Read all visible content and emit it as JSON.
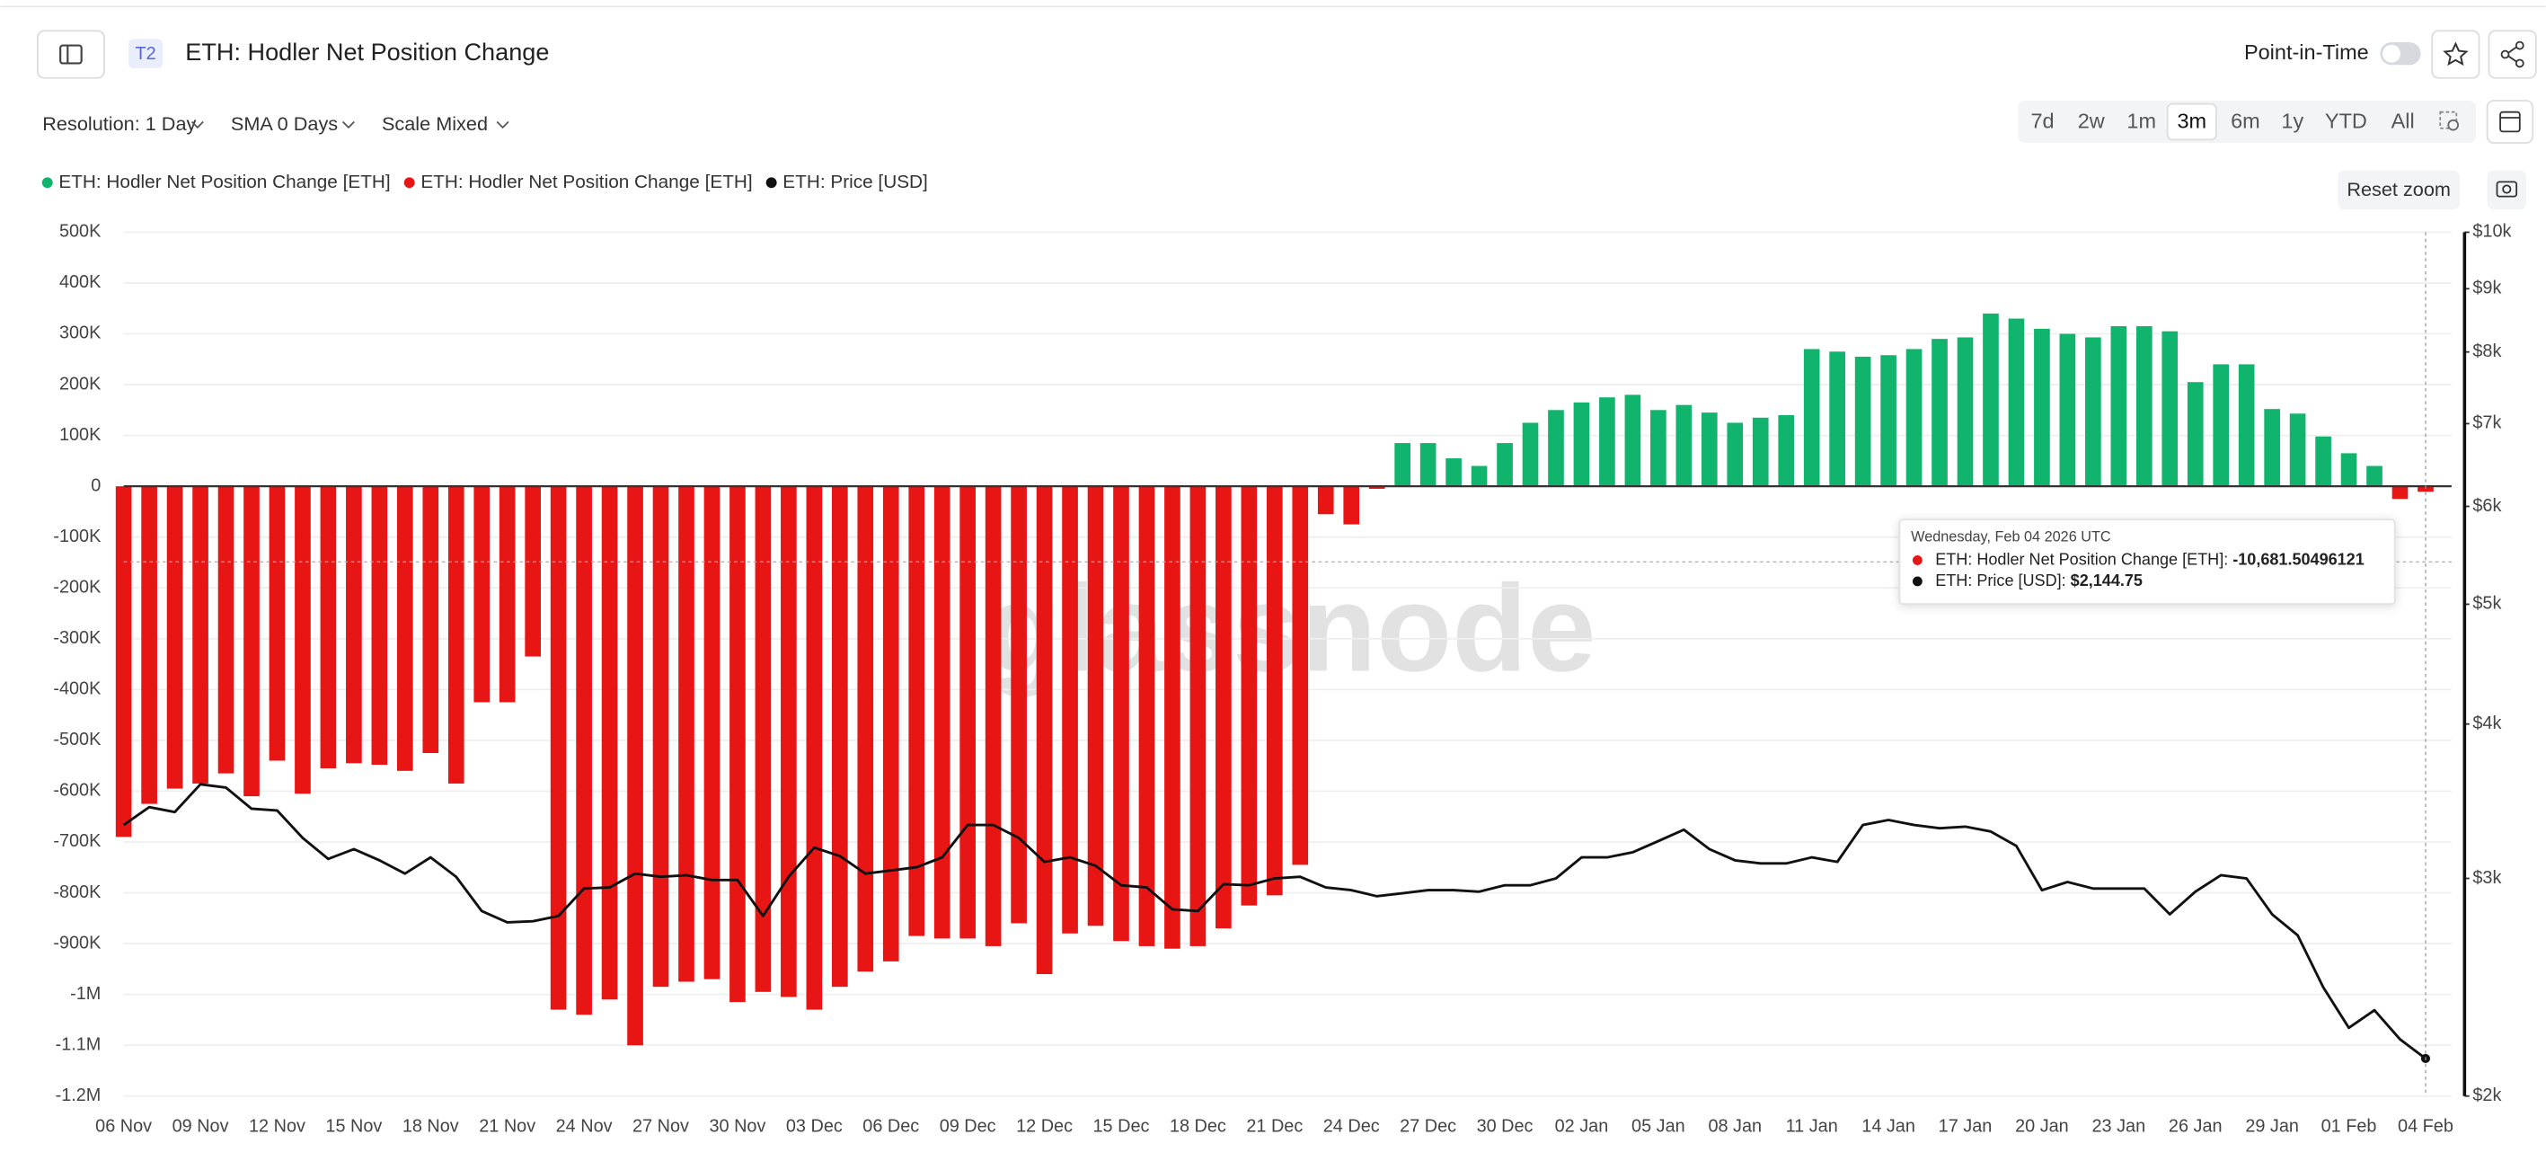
{
  "header": {
    "tag": "T2",
    "title": "ETH: Hodler Net Position Change",
    "point_in_time": "Point-in-Time"
  },
  "toolbar": {
    "resolution": "Resolution: 1 Day",
    "sma": "SMA 0 Days",
    "scale": "Scale Mixed",
    "ranges": [
      "7d",
      "2w",
      "1m",
      "3m",
      "6m",
      "1y",
      "YTD",
      "All"
    ],
    "active_range": "3m",
    "reset_zoom": "Reset zoom"
  },
  "watermark": "glassnode",
  "tooltip": {
    "date": "Wednesday, Feb 04 2026 UTC",
    "rows": [
      {
        "label": "ETH: Hodler Net Position Change [ETH]: ",
        "value": "-10,681.50496121",
        "color": "#e81515"
      },
      {
        "label": "ETH: Price [USD]: ",
        "value": "$2,144.75",
        "color": "#111111"
      }
    ]
  },
  "chart_data": {
    "type": "bar",
    "categories": [
      "06 Nov",
      null,
      null,
      "09 Nov",
      null,
      null,
      "12 Nov",
      null,
      null,
      "15 Nov",
      null,
      null,
      "18 Nov",
      null,
      null,
      "21 Nov",
      null,
      null,
      "24 Nov",
      null,
      null,
      "27 Nov",
      null,
      null,
      "30 Nov",
      null,
      null,
      "03 Dec",
      null,
      null,
      "06 Dec",
      null,
      null,
      "09 Dec",
      null,
      null,
      "12 Dec",
      null,
      null,
      "15 Dec",
      null,
      null,
      "18 Dec",
      null,
      null,
      "21 Dec",
      null,
      null,
      "24 Dec",
      null,
      null,
      "27 Dec",
      null,
      null,
      "30 Dec",
      null,
      null,
      "02 Jan",
      null,
      null,
      "05 Jan",
      null,
      null,
      "08 Jan",
      null,
      null,
      "11 Jan",
      null,
      null,
      "14 Jan",
      null,
      null,
      "17 Jan",
      null,
      null,
      "20 Jan",
      null,
      null,
      "23 Jan",
      null,
      null,
      "26 Jan",
      null,
      null,
      "29 Jan",
      null,
      null,
      "01 Feb",
      null,
      null,
      "04 Feb"
    ],
    "series": [
      {
        "name": "ETH: Hodler Net Position Change [ETH]",
        "color": "#10b46c",
        "type": "bar",
        "values": [
          null,
          null,
          null,
          null,
          null,
          null,
          null,
          null,
          null,
          null,
          null,
          null,
          null,
          null,
          null,
          null,
          null,
          null,
          null,
          null,
          null,
          null,
          null,
          null,
          null,
          null,
          null,
          null,
          null,
          null,
          null,
          null,
          null,
          null,
          null,
          null,
          null,
          null,
          null,
          null,
          null,
          null,
          null,
          null,
          null,
          null,
          null,
          null,
          null,
          null,
          85000,
          85000,
          55000,
          40000,
          85000,
          125000,
          150000,
          165000,
          175000,
          180000,
          150000,
          160000,
          145000,
          125000,
          135000,
          140000,
          270000,
          265000,
          255000,
          258000,
          270000,
          290000,
          293000,
          340000,
          330000,
          310000,
          300000,
          293000,
          315000,
          315000,
          305000,
          205000,
          240000,
          240000,
          152000,
          143000,
          98000,
          65000,
          40000,
          null,
          null
        ]
      },
      {
        "name": "ETH: Hodler Net Position Change [ETH]",
        "color": "#e81515",
        "type": "bar",
        "values": [
          -690000,
          -625000,
          -595000,
          -585000,
          -565000,
          -610000,
          -540000,
          -605000,
          -555000,
          -545000,
          -548000,
          -560000,
          -525000,
          -585000,
          -425000,
          -425000,
          -335000,
          -1030000,
          -1040000,
          -1010000,
          -1100000,
          -985000,
          -975000,
          -970000,
          -1015000,
          -995000,
          -1005000,
          -1030000,
          -985000,
          -955000,
          -935000,
          -885000,
          -890000,
          -890000,
          -905000,
          -860000,
          -960000,
          -880000,
          -865000,
          -895000,
          -905000,
          -910000,
          -905000,
          -870000,
          -825000,
          -805000,
          -745000,
          -55000,
          -75000,
          -5000,
          null,
          null,
          null,
          null,
          null,
          null,
          null,
          null,
          null,
          null,
          null,
          null,
          null,
          null,
          null,
          null,
          null,
          null,
          null,
          null,
          null,
          null,
          null,
          null,
          null,
          null,
          null,
          null,
          null,
          null,
          null,
          null,
          null,
          null,
          null,
          null,
          null,
          null,
          null,
          -25000,
          -10681.50496121
        ]
      },
      {
        "name": "ETH: Price [USD]",
        "color": "#111111",
        "type": "line",
        "axis": "y2",
        "values": [
          3314,
          3426,
          3395,
          3575,
          3553,
          3416,
          3405,
          3235,
          3111,
          3168,
          3103,
          3027,
          3120,
          3009,
          2823,
          2764,
          2770,
          2797,
          2944,
          2950,
          3027,
          3009,
          3018,
          2991,
          2991,
          2797,
          3009,
          3177,
          3128,
          3027,
          3045,
          3063,
          3120,
          3314,
          3314,
          3235,
          3094,
          3120,
          3072,
          2962,
          2950,
          2832,
          2823,
          2968,
          2962,
          3000,
          3009,
          2950,
          2935,
          2902,
          2918,
          2935,
          2935,
          2927,
          2962,
          2962,
          3000,
          3120,
          3120,
          3150,
          3216,
          3285,
          3168,
          3103,
          3085,
          3085,
          3120,
          3094,
          3314,
          3345,
          3314,
          3294,
          3304,
          3274,
          3187,
          2935,
          2980,
          2944,
          2944,
          2944,
          2806,
          2927,
          3018,
          3000,
          2806,
          2698,
          2449,
          2271,
          2347,
          2223,
          2144.75
        ]
      }
    ],
    "ylim": [
      -1200000,
      500000
    ],
    "yticks": [
      {
        "value": 500000,
        "label": "500K"
      },
      {
        "value": 400000,
        "label": "400K"
      },
      {
        "value": 300000,
        "label": "300K"
      },
      {
        "value": 200000,
        "label": "200K"
      },
      {
        "value": 100000,
        "label": "100K"
      },
      0,
      {
        "value": -100000,
        "label": "-100K"
      },
      {
        "value": -200000,
        "label": "-200K"
      },
      {
        "value": -300000,
        "label": "-300K"
      },
      {
        "value": -400000,
        "label": "-400K"
      },
      {
        "value": -500000,
        "label": "-500K"
      },
      {
        "value": -600000,
        "label": "-600K"
      },
      {
        "value": -700000,
        "label": "-700K"
      },
      {
        "value": -800000,
        "label": "-800K"
      },
      {
        "value": -900000,
        "label": "-900K"
      },
      {
        "value": -1000000,
        "label": "-1M"
      },
      {
        "value": -1100000,
        "label": "-1.1M"
      },
      {
        "value": -1200000,
        "label": "-1.2M"
      }
    ],
    "y2lim": [
      2000,
      10000
    ],
    "y2log": true,
    "y2ticks": [
      {
        "value": 2000,
        "label": "$2k"
      },
      {
        "value": 3000,
        "label": "$3k"
      },
      {
        "value": 4000,
        "label": "$4k"
      },
      {
        "value": 5000,
        "label": "$5k"
      },
      {
        "value": 6000,
        "label": "$6k"
      },
      {
        "value": 7000,
        "label": "$7k"
      },
      {
        "value": 8000,
        "label": "$8k"
      },
      {
        "value": 9000,
        "label": "$9k"
      },
      {
        "value": 10000,
        "label": "$10k"
      }
    ],
    "grid": true
  }
}
